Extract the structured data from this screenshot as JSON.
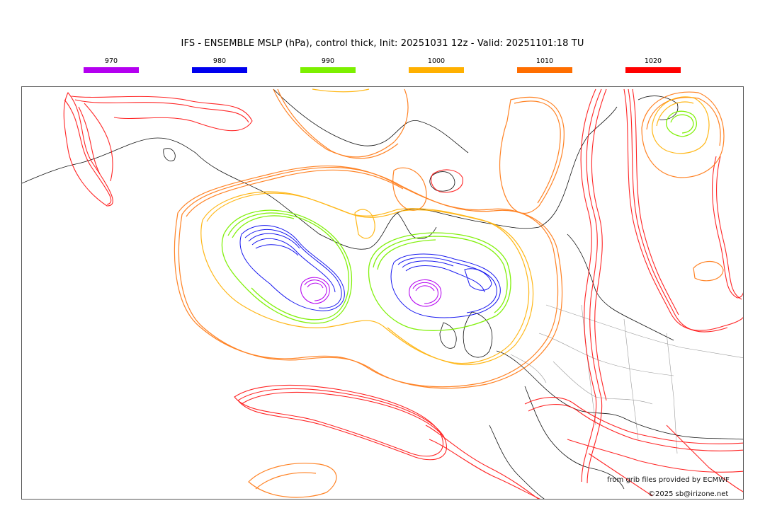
{
  "title": "IFS - ENSEMBLE MSLP (hPa), control thick, Init: 20251031 12z - Valid: 20251101:18 TU",
  "legend": [
    {
      "label": "970",
      "color": "#b400f0"
    },
    {
      "label": "980",
      "color": "#0000ee"
    },
    {
      "label": "990",
      "color": "#7cf000"
    },
    {
      "label": "1000",
      "color": "#ffb000"
    },
    {
      "label": "1010",
      "color": "#ff6e00"
    },
    {
      "label": "1020",
      "color": "#ff0000"
    }
  ],
  "credits": {
    "source": "from grib files provided by ECMWF",
    "copyright": "©2025 sb@irizone.net"
  },
  "map": {
    "projection": "North Atlantic / Europe",
    "lows": [
      {
        "name": "low-west-atlantic",
        "min_contour_hPa": 970
      },
      {
        "name": "low-north-of-scotland",
        "min_contour_hPa": 970
      }
    ],
    "highs": [
      {
        "name": "high-northeast",
        "inner_contour_hPa": 990
      }
    ]
  }
}
